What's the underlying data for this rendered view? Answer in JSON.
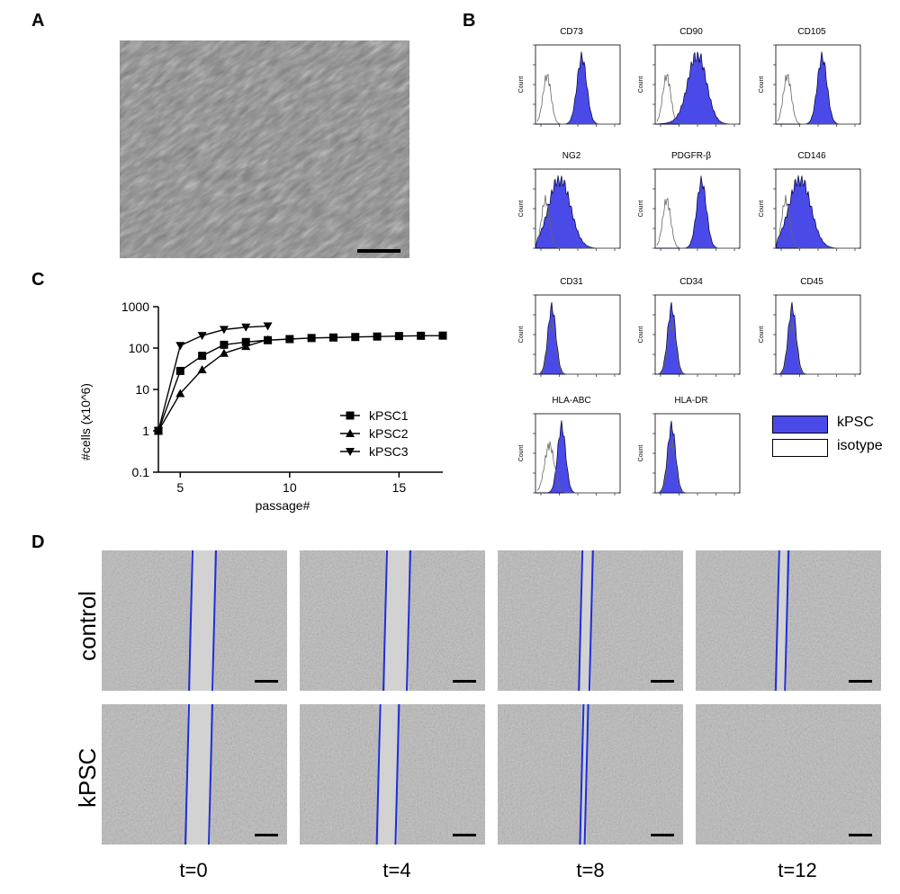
{
  "panels": {
    "a": "A",
    "b": "B",
    "c": "C",
    "d": "D"
  },
  "flow": {
    "histograms": [
      {
        "marker": "CD73",
        "overlap": "separated",
        "shape": "sharp"
      },
      {
        "marker": "CD90",
        "overlap": "separated",
        "shape": "broad"
      },
      {
        "marker": "CD105",
        "overlap": "separated",
        "shape": "sharp"
      },
      {
        "marker": "NG2",
        "overlap": "overlapping",
        "shape": "broad"
      },
      {
        "marker": "PDGFR-β",
        "overlap": "separated",
        "shape": "sharp"
      },
      {
        "marker": "CD146",
        "overlap": "overlapping",
        "shape": "broad"
      },
      {
        "marker": "CD31",
        "overlap": "negative",
        "shape": "sharp"
      },
      {
        "marker": "CD34",
        "overlap": "negative",
        "shape": "sharp"
      },
      {
        "marker": "CD45",
        "overlap": "negative",
        "shape": "sharp"
      },
      {
        "marker": "HLA-ABC",
        "overlap": "partial",
        "shape": "sharp"
      },
      {
        "marker": "HLA-DR",
        "overlap": "negative",
        "shape": "sharp"
      }
    ],
    "ylabel": "Count",
    "legend": [
      {
        "label": "kPSC",
        "color": "#4a4ae8"
      },
      {
        "label": "isotype",
        "color": "#ffffff"
      }
    ]
  },
  "chart_data": {
    "type": "line",
    "title": "",
    "xlabel": "passage#",
    "ylabel": "#cells (x10^6)",
    "yscale": "log",
    "ylim": [
      0.1,
      1000
    ],
    "xlim": [
      4,
      17
    ],
    "xticks": [
      "5",
      "10",
      "15"
    ],
    "yticks": [
      "0.1",
      "1",
      "10",
      "100",
      "1000"
    ],
    "series": [
      {
        "name": "kPSC1",
        "marker": "square",
        "x": [
          4,
          5,
          6,
          7,
          8,
          9,
          10,
          11,
          12,
          13,
          14,
          15,
          16,
          17
        ],
        "y": [
          1,
          28,
          65,
          120,
          140,
          155,
          165,
          175,
          180,
          185,
          190,
          195,
          198,
          200
        ]
      },
      {
        "name": "kPSC2",
        "marker": "triangle-up",
        "x": [
          4,
          5,
          6,
          7,
          8,
          9
        ],
        "y": [
          1,
          8,
          30,
          75,
          110,
          160
        ]
      },
      {
        "name": "kPSC3",
        "marker": "triangle-down",
        "x": [
          4,
          5,
          6,
          7,
          8,
          9
        ],
        "y": [
          1,
          115,
          200,
          280,
          320,
          340
        ]
      }
    ]
  },
  "scratch": {
    "rows": [
      "control",
      "kPSC"
    ],
    "times": [
      "t=0",
      "t=4",
      "t=8",
      "t=12"
    ],
    "line_color": "#1f2fd6",
    "gap_closed_fraction": {
      "control": [
        0.0,
        0.0,
        0.55,
        0.6
      ],
      "kPSC": [
        0.0,
        0.2,
        0.8,
        1.0
      ]
    }
  }
}
